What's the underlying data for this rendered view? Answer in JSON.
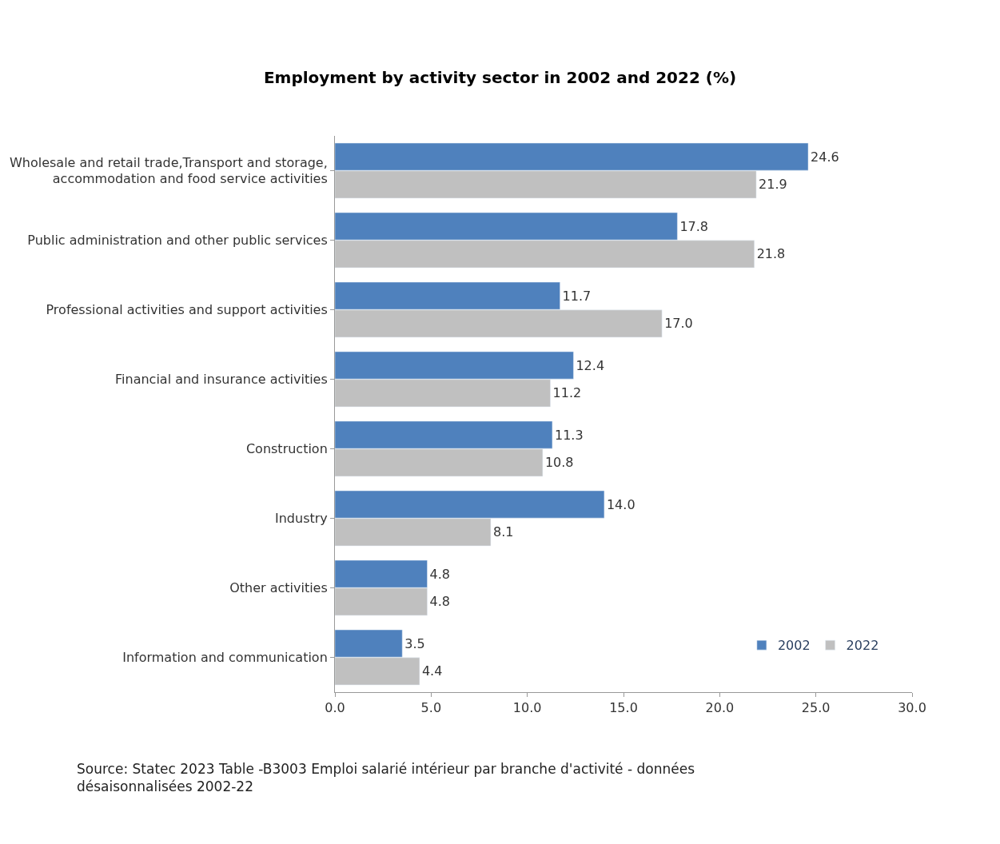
{
  "chart_data": {
    "type": "bar",
    "orientation": "horizontal",
    "title": "Employment by activity sector in 2002 and 2022 (%)",
    "categories": [
      "Wholesale and retail trade,Transport and storage, accommodation and food service activities",
      "Public administration and other public services",
      "Professional activities and support activities",
      "Financial and insurance activities",
      "Construction",
      "Industry",
      "Other activities",
      "Information and communication"
    ],
    "series": [
      {
        "name": "2002",
        "color": "#4f81bd",
        "values": [
          24.6,
          17.8,
          11.7,
          12.4,
          11.3,
          14.0,
          4.8,
          3.5
        ],
        "value_labels": [
          "24.6",
          "17.8",
          "11.7",
          "12.4",
          "11.3",
          "14.0",
          "4.8",
          "3.5"
        ]
      },
      {
        "name": "2022",
        "color": "#c0c0c0",
        "values": [
          21.9,
          21.8,
          17.0,
          11.2,
          10.8,
          8.1,
          4.8,
          4.4
        ],
        "value_labels": [
          "21.9",
          "21.8",
          "17.0",
          "11.2",
          "10.8",
          "8.1",
          "4.8",
          "4.4"
        ]
      }
    ],
    "xlim": [
      0,
      30
    ],
    "xticks": [
      {
        "value": 0,
        "label": "0.0"
      },
      {
        "value": 5,
        "label": "5.0"
      },
      {
        "value": 10,
        "label": "10.0"
      },
      {
        "value": 15,
        "label": "15.0"
      },
      {
        "value": 20,
        "label": "20.0"
      },
      {
        "value": 25,
        "label": "25.0"
      },
      {
        "value": 30,
        "label": "30.0"
      }
    ],
    "legend": "bottom right",
    "annotations": [
      "Source: Statec 2023 Table -B3003 Emploi salarié intérieur par branche d'activité - données désaisonnalisées 2002-22"
    ]
  }
}
